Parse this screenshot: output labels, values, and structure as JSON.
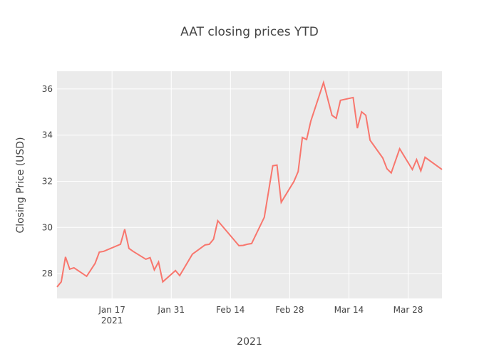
{
  "chart_data": {
    "type": "line",
    "title": "AAT closing prices YTD",
    "xlabel": "2021",
    "ylabel": "Closing Price (USD)",
    "x": [
      "2021-01-04",
      "2021-01-05",
      "2021-01-06",
      "2021-01-07",
      "2021-01-08",
      "2021-01-11",
      "2021-01-13",
      "2021-01-14",
      "2021-01-15",
      "2021-01-19",
      "2021-01-20",
      "2021-01-21",
      "2021-01-22",
      "2021-01-25",
      "2021-01-26",
      "2021-01-27",
      "2021-01-28",
      "2021-01-29",
      "2021-02-01",
      "2021-02-02",
      "2021-02-05",
      "2021-02-08",
      "2021-02-09",
      "2021-02-10",
      "2021-02-11",
      "2021-02-16",
      "2021-02-17",
      "2021-02-18",
      "2021-02-19",
      "2021-02-22",
      "2021-02-24",
      "2021-02-25",
      "2021-02-26",
      "2021-03-01",
      "2021-03-02",
      "2021-03-03",
      "2021-03-04",
      "2021-03-05",
      "2021-03-08",
      "2021-03-10",
      "2021-03-11",
      "2021-03-12",
      "2021-03-15",
      "2021-03-16",
      "2021-03-17",
      "2021-03-18",
      "2021-03-19",
      "2021-03-22",
      "2021-03-23",
      "2021-03-24",
      "2021-03-26",
      "2021-03-29",
      "2021-03-30",
      "2021-03-31",
      "2021-04-01",
      "2021-04-05"
    ],
    "series": [
      {
        "color": "#F8766D",
        "values": [
          27.42,
          27.64,
          28.72,
          28.19,
          28.25,
          27.88,
          28.44,
          28.93,
          28.96,
          29.27,
          29.92,
          29.09,
          28.96,
          28.62,
          28.69,
          28.16,
          28.5,
          27.64,
          28.13,
          27.91,
          28.84,
          29.24,
          29.27,
          29.49,
          30.29,
          29.21,
          29.22,
          29.27,
          29.3,
          30.44,
          32.67,
          32.7,
          31.09,
          31.99,
          32.42,
          33.9,
          33.81,
          34.61,
          36.28,
          34.86,
          34.73,
          35.51,
          35.63,
          34.3,
          35.01,
          34.86,
          33.78,
          33.01,
          32.54,
          32.36,
          33.41,
          32.51,
          32.94,
          32.45,
          33.04,
          32.51
        ]
      }
    ],
    "xlim": [
      "2021-01-04",
      "2021-04-05"
    ],
    "xticks": [
      {
        "value": "2021-01-17",
        "label": "Jan 17\n2021"
      },
      {
        "value": "2021-01-31",
        "label": "Jan 31"
      },
      {
        "value": "2021-02-14",
        "label": "Feb 14"
      },
      {
        "value": "2021-02-28",
        "label": "Feb 28"
      },
      {
        "value": "2021-03-14",
        "label": "Mar 14"
      },
      {
        "value": "2021-03-28",
        "label": "Mar 28"
      }
    ],
    "ylim": [
      26.92,
      36.77
    ],
    "yticks": [
      28,
      30,
      32,
      34,
      36
    ],
    "grid": true,
    "background": "#EBEBEB"
  }
}
